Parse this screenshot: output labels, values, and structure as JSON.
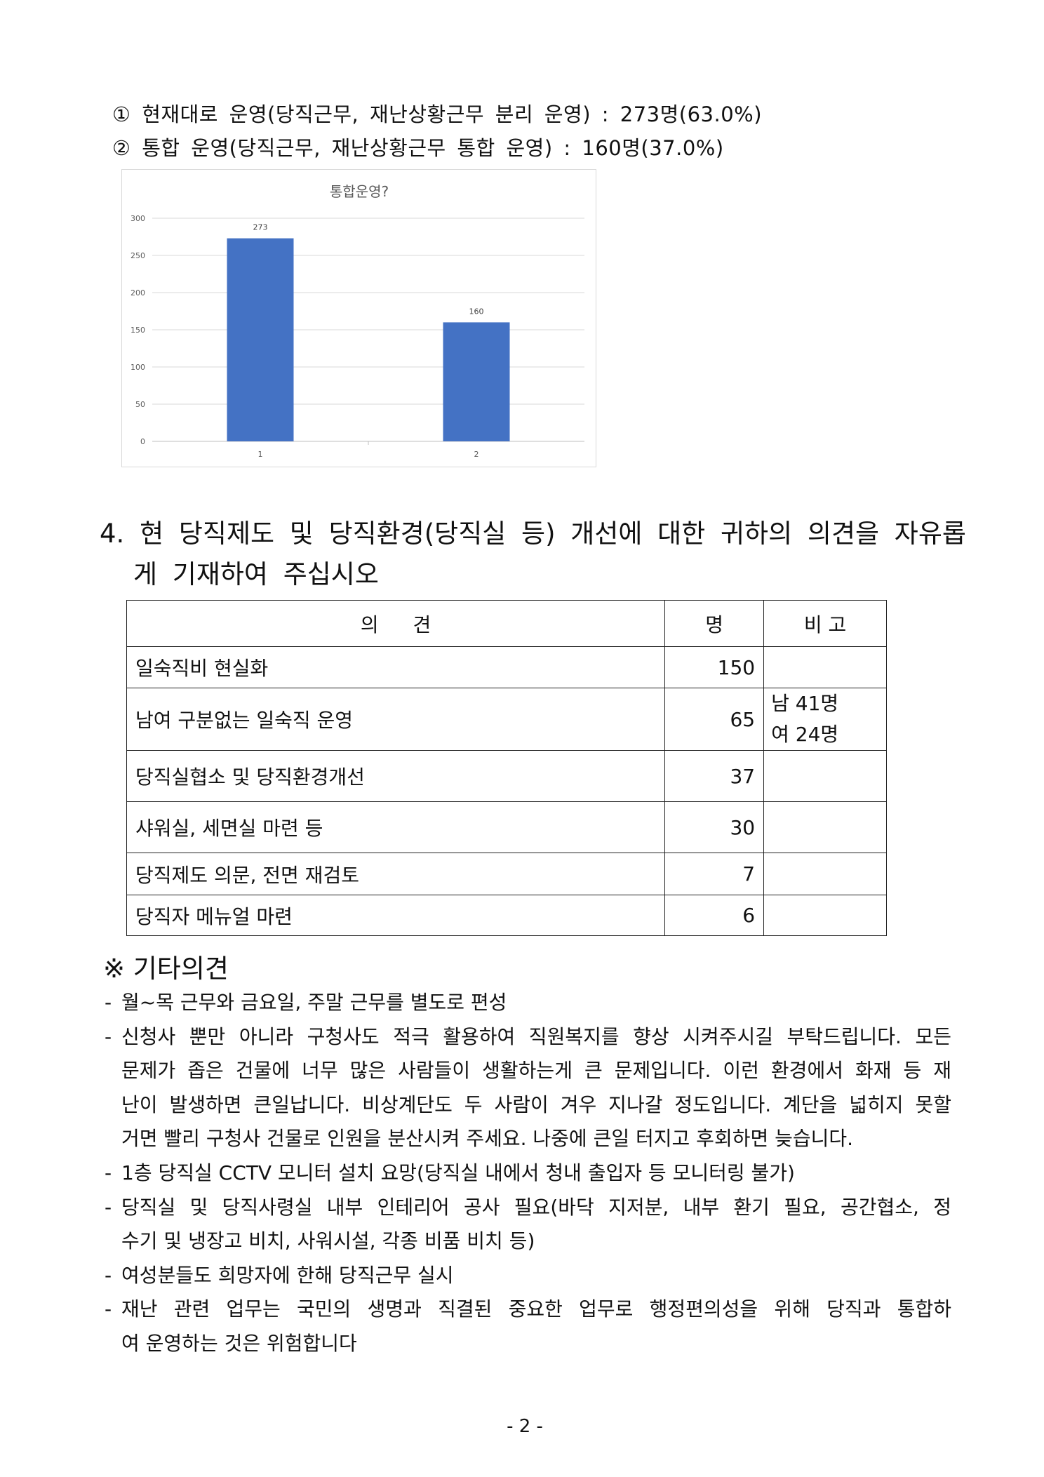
{
  "options": [
    "① 현재대로 운영(당직근무, 재난상황근무 분리 운영) : 273명(63.0%)",
    "② 통합 운영(당직근무, 재난상황근무 통합 운영) : 160명(37.0%)"
  ],
  "chart_data": {
    "type": "bar",
    "title": "통합운영?",
    "categories": [
      "1",
      "2"
    ],
    "values": [
      273,
      160
    ],
    "data_labels": [
      "273",
      "160"
    ],
    "ylim": [
      0,
      300
    ],
    "yticks": [
      "0",
      "50",
      "100",
      "150",
      "200",
      "250",
      "300"
    ],
    "grid": true,
    "bar_color": "#4472c4"
  },
  "question": {
    "line1": "4. 현 당직제도 및 당직환경(당직실 등) 개선에 대한 귀하의 의견을 자유롭",
    "line2": "게 기재하여 주십시오"
  },
  "table": {
    "headers": [
      "의 견",
      "명",
      "비 고"
    ],
    "rows": [
      {
        "opinion": "일숙직비 현실화",
        "count": "150",
        "note1": "",
        "note2": ""
      },
      {
        "opinion": "남여 구분없는 일숙직 운영",
        "count": "65",
        "note1": "남 41명",
        "note2": "여 24명"
      },
      {
        "opinion": "당직실협소 및 당직환경개선",
        "count": "37",
        "note1": "",
        "note2": ""
      },
      {
        "opinion": "샤워실, 세면실 마련 등",
        "count": "30",
        "note1": "",
        "note2": ""
      },
      {
        "opinion": "당직제도 의문, 전면 재검토",
        "count": "7",
        "note1": "",
        "note2": ""
      },
      {
        "opinion": "당직자 메뉴얼 마련",
        "count": "6",
        "note1": "",
        "note2": ""
      }
    ]
  },
  "other": {
    "heading": "※ 기타의견",
    "dash": "-",
    "items": [
      [
        "월~목 근무와 금요일, 주말 근무를 별도로 편성"
      ],
      [
        "신청사 뿐만 아니라 구청사도 적극 활용하여 직원복지를 향상 시켜주시길 부탁드립니다. 모든",
        "문제가 좁은 건물에 너무 많은 사람들이 생활하는게 큰 문제입니다. 이런 환경에서 화재 등 재",
        "난이 발생하면 큰일납니다. 비상계단도 두 사람이 겨우 지나갈 정도입니다. 계단을 넓히지 못할",
        "거면 빨리 구청사 건물로 인원을 분산시켜 주세요. 나중에 큰일 터지고 후회하면 늦습니다."
      ],
      [
        "1층 당직실 CCTV 모니터 설치 요망(당직실 내에서 청내 출입자 등 모니터링 불가)"
      ],
      [
        "당직실 및 당직사령실 내부 인테리어 공사 필요(바닥 지저분, 내부 환기 필요, 공간협소, 정",
        "수기 및 냉장고 비치, 사워시설, 각종 비품 비치 등)"
      ],
      [
        "여성분들도 희망자에 한해 당직근무 실시"
      ],
      [
        "재난 관련 업무는 국민의 생명과 직결된 중요한 업무로 행정편의성을 위해 당직과 통합하",
        "여 운영하는 것은 위험합니다"
      ]
    ]
  },
  "page_number": "- 2 -"
}
